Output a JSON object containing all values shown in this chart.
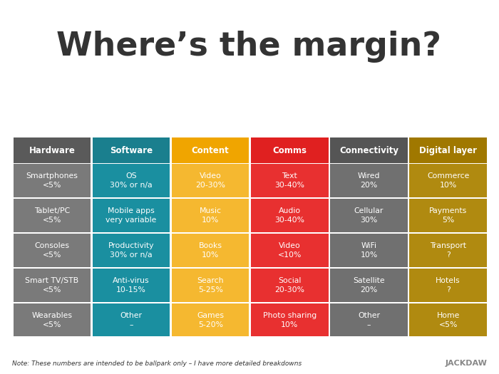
{
  "title": "Where’s the margin?",
  "footnote": "Note: These numbers are intended to be ballpark only – I have more detailed breakdowns",
  "brand": "JACKDAW",
  "columns": [
    "Hardware",
    "Software",
    "Content",
    "Comms",
    "Connectivity",
    "Digital layer"
  ],
  "header_colors": [
    "#5a5a5a",
    "#1a7f8e",
    "#f0a500",
    "#e02020",
    "#555555",
    "#a07800"
  ],
  "cell_colors": [
    "#7a7a7a",
    "#1a8fa0",
    "#f5b830",
    "#e83030",
    "#707070",
    "#b08a10"
  ],
  "rows": [
    [
      "Smartphones\n<5%",
      "OS\n30% or n/a",
      "Video\n20-30%",
      "Text\n30-40%",
      "Wired\n20%",
      "Commerce\n10%"
    ],
    [
      "Tablet/PC\n<5%",
      "Mobile apps\nvery variable",
      "Music\n10%",
      "Audio\n30-40%",
      "Cellular\n30%",
      "Payments\n5%"
    ],
    [
      "Consoles\n<5%",
      "Productivity\n30% or n/a",
      "Books\n10%",
      "Video\n<10%",
      "WiFi\n10%",
      "Transport\n?"
    ],
    [
      "Smart TV/STB\n<5%",
      "Anti-virus\n10-15%",
      "Search\n5-25%",
      "Social\n20-30%",
      "Satellite\n20%",
      "Hotels\n?"
    ],
    [
      "Wearables\n<5%",
      "Other\n–",
      "Games\n5-20%",
      "Photo sharing\n10%",
      "Other\n–",
      "Home\n<5%"
    ]
  ],
  "bg_color": "#ffffff",
  "text_color_light": "#ffffff",
  "title_color": "#333333",
  "footnote_color": "#333333",
  "brand_color": "#888888"
}
